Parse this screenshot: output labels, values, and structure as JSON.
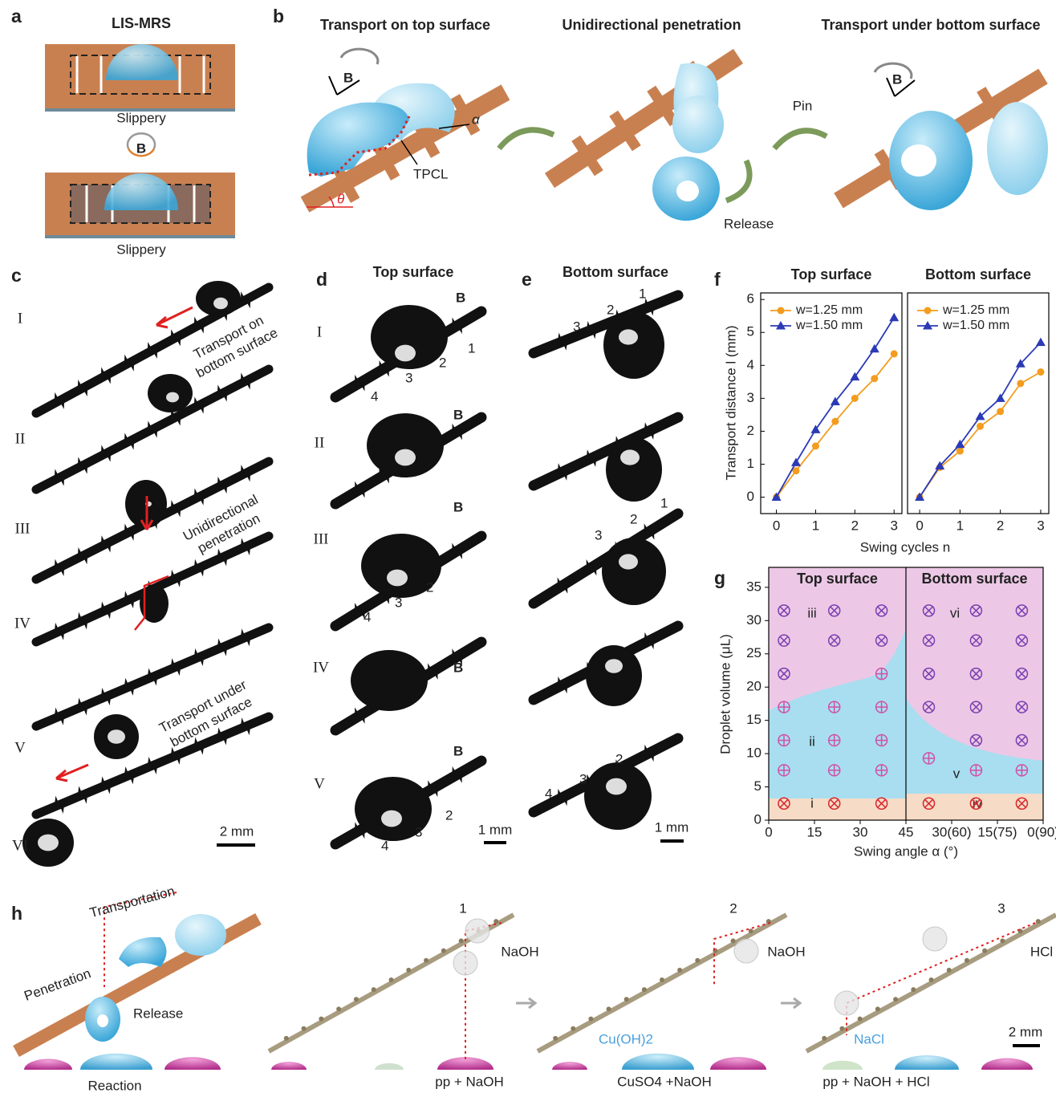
{
  "panel_labels": [
    "a",
    "b",
    "c",
    "d",
    "e",
    "f",
    "g",
    "h"
  ],
  "a": {
    "title": "LIS-MRS",
    "captions": [
      "Slippery",
      "Slippery"
    ],
    "field": "B"
  },
  "b": {
    "titles": [
      "Transport on top surface",
      "Unidirectional penetration",
      "Transport under bottom surface"
    ],
    "labels": {
      "field_1": "B",
      "alpha": "α",
      "tpcl": "TPCL",
      "theta": "θ",
      "release": "Release",
      "pin": "Pin",
      "field_2": "B"
    }
  },
  "c": {
    "rows": [
      "I",
      "II",
      "III",
      "IV",
      "V",
      "VI"
    ],
    "notes": [
      [
        "Transport on",
        "bottom surface"
      ],
      [
        "Unidirectional",
        "penetration"
      ],
      [
        "Transport under",
        "bottom surface"
      ]
    ],
    "scale": "2 mm"
  },
  "d": {
    "title": "Top surface",
    "rows": [
      "I",
      "II",
      "III",
      "IV",
      "V"
    ],
    "field": [
      "B",
      "B",
      "B",
      "B",
      "B"
    ],
    "labels": [
      [
        "1",
        "2",
        "3",
        "4"
      ],
      [
        "2",
        "3",
        "4"
      ],
      [
        "2",
        "3",
        "4"
      ]
    ],
    "scale": "1 mm"
  },
  "e": {
    "title": "Bottom surface",
    "labels": [
      [
        "1",
        "2",
        "3"
      ],
      [
        "1",
        "2",
        "3"
      ],
      [
        "2",
        "3",
        "4"
      ]
    ],
    "scale": "1 mm"
  },
  "h": {
    "labels": [
      "Transportation",
      "Penetration",
      "Release",
      "Reaction"
    ],
    "steps": [
      "1",
      "2",
      "3"
    ],
    "droplets": [
      "NaOH",
      "NaOH",
      "HCl"
    ],
    "products": [
      "Cu(OH)2",
      "NaCl"
    ],
    "pools": [
      "pp + NaOH",
      "CuSO4 +NaOH",
      "pp + NaOH + HCl"
    ],
    "scale": "2 mm"
  },
  "chart_data": [
    {
      "type": "line",
      "title": "Top surface",
      "ylabel": "Transport distance l (mm)",
      "xlabel": "Swing cycles n",
      "x": [
        0,
        0.5,
        1,
        1.5,
        2,
        2.5,
        3
      ],
      "series": [
        {
          "name": "w=1.25 mm",
          "color": "#f39c1e",
          "marker": "circle",
          "values": [
            0,
            0.8,
            1.55,
            2.3,
            3.0,
            3.6,
            4.35
          ]
        },
        {
          "name": "w=1.50 mm",
          "color": "#2b3ab5",
          "marker": "triangle",
          "values": [
            0,
            1.05,
            2.05,
            2.9,
            3.65,
            4.5,
            5.45
          ]
        }
      ],
      "xlim": [
        -0.4,
        3.2
      ],
      "xticks": [
        0,
        1,
        2,
        3
      ],
      "ylim": [
        -0.5,
        6.2
      ],
      "yticks": [
        0,
        1,
        2,
        3,
        4,
        5,
        6
      ]
    },
    {
      "type": "line",
      "title": "Bottom surface",
      "x": [
        0,
        0.5,
        1,
        1.5,
        2,
        2.5,
        3
      ],
      "series": [
        {
          "name": "w=1.25 mm",
          "color": "#f39c1e",
          "marker": "circle",
          "values": [
            0,
            0.9,
            1.4,
            2.15,
            2.6,
            3.45,
            3.8
          ]
        },
        {
          "name": "w=1.50 mm",
          "color": "#2b3ab5",
          "marker": "triangle",
          "values": [
            0,
            0.95,
            1.6,
            2.45,
            3.0,
            4.05,
            4.7
          ]
        }
      ],
      "xlim": [
        -0.3,
        3.2
      ],
      "xticks": [
        0,
        1,
        2,
        3
      ],
      "ylim": [
        -0.5,
        6.2
      ]
    },
    {
      "type": "scatter",
      "titles": [
        "Top surface",
        "Bottom surface"
      ],
      "ylabel": "Droplet volume (μL)",
      "xlabel": "Swing angle α (°)",
      "regions": [
        "i",
        "ii",
        "iii",
        "iv",
        "v",
        "vi"
      ],
      "series": [
        {
          "marker": "otimes",
          "color": "#7a3fb0",
          "x": [
            5,
            5,
            21.5,
            37,
            5,
            21.5,
            37,
            52.5,
            68,
            83,
            52.5,
            68,
            83,
            52.5,
            68,
            83,
            52.5,
            68,
            83,
            68,
            83
          ],
          "y": [
            22,
            27,
            27,
            27,
            31.5,
            31.5,
            31.5,
            31.5,
            31.5,
            31.5,
            27,
            27,
            27,
            22,
            22,
            22,
            17,
            17,
            17,
            12,
            12
          ]
        },
        {
          "marker": "otimes",
          "color": "#d9262c",
          "x": [
            5,
            21.5,
            37,
            52.5,
            68,
            83
          ],
          "y": [
            2.5,
            2.5,
            2.5,
            2.5,
            2.5,
            2.5
          ]
        },
        {
          "marker": "oplus",
          "color": "#d14fa6",
          "x": [
            5,
            21.5,
            37,
            5,
            21.5,
            37,
            5,
            21.5,
            37,
            37,
            68,
            83,
            52.5
          ],
          "y": [
            7.5,
            7.5,
            7.5,
            12,
            12,
            12,
            17,
            17,
            17,
            22,
            7.5,
            7.5,
            9.3
          ]
        }
      ],
      "xlim": [
        0,
        90
      ],
      "xticks": [
        0,
        15,
        30,
        45,
        {
          "value": 60,
          "label": "30(60)"
        },
        {
          "value": 75,
          "label": "15(75)"
        },
        {
          "value": 90,
          "label": "0(90)"
        }
      ],
      "ylim": [
        0,
        38
      ],
      "yticks": [
        0,
        5,
        10,
        15,
        20,
        25,
        30,
        35
      ]
    }
  ]
}
